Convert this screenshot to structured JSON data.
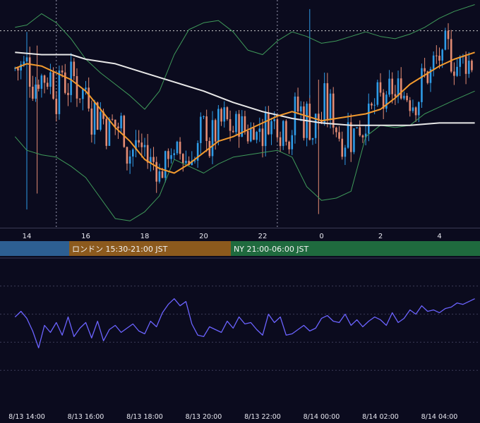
{
  "chart_data": [
    {
      "type": "candlestick",
      "title": "",
      "x_hours": [
        14,
        16,
        18,
        20,
        22,
        0,
        2,
        4
      ],
      "x_tick_labels": [
        "14",
        "16",
        "18",
        "20",
        "22",
        "0",
        "2",
        "4"
      ],
      "ylim": [
        0,
        100
      ],
      "y_unit": "relative (no price axis shown)",
      "colors": {
        "up": "#2e9be6",
        "down": "#e38b73",
        "ma_short": "#f29a2e",
        "ma_long": "#e8e8e8",
        "bollinger": "#3f9a5a",
        "hline": "#d0d0d0"
      },
      "ma_long": {
        "x": [
          13.6,
          14.5,
          15.5,
          16,
          17,
          18,
          19,
          20,
          21,
          22,
          23,
          0,
          1,
          2,
          3,
          4,
          5.2
        ],
        "y": [
          77,
          76,
          76,
          74,
          72,
          68,
          64,
          60,
          55,
          51,
          48,
          46,
          45,
          45,
          45,
          46,
          46
        ]
      },
      "ma_short": {
        "x": [
          13.6,
          14,
          14.5,
          15,
          15.5,
          16,
          16.5,
          17,
          17.5,
          18,
          18.5,
          19,
          19.5,
          20,
          20.5,
          21,
          21.5,
          22,
          22.5,
          23,
          23.5,
          0,
          0.5,
          1,
          1.5,
          2,
          2.5,
          3,
          3.5,
          4,
          4.5,
          5.2
        ],
        "y": [
          70,
          72,
          71,
          68,
          65,
          60,
          52,
          44,
          38,
          30,
          26,
          24,
          28,
          33,
          38,
          40,
          43,
          46,
          49,
          51,
          49,
          47,
          48,
          49,
          50,
          52,
          57,
          63,
          67,
          71,
          74,
          77
        ]
      },
      "bollinger_upper": {
        "x": [
          13.6,
          14,
          14.5,
          15,
          15.5,
          16,
          16.5,
          17,
          17.5,
          18,
          18.5,
          19,
          19.5,
          20,
          20.5,
          21,
          21.5,
          22,
          22.5,
          23,
          23.5,
          0,
          0.5,
          1,
          1.5,
          2,
          2.5,
          3,
          3.5,
          4,
          4.5,
          5.2
        ],
        "y": [
          88,
          89,
          94,
          90,
          83,
          74,
          68,
          63,
          58,
          52,
          60,
          76,
          87,
          90,
          91,
          86,
          78,
          76,
          82,
          86,
          84,
          81,
          82,
          84,
          86,
          84,
          83,
          85,
          88,
          92,
          95,
          98
        ]
      },
      "bollinger_lower": {
        "x": [
          13.6,
          14,
          14.5,
          15,
          15.5,
          16,
          16.5,
          17,
          17.5,
          18,
          18.5,
          19,
          19.5,
          20,
          20.5,
          21,
          21.5,
          22,
          22.5,
          23,
          23.5,
          0,
          0.5,
          1,
          1.5,
          2,
          2.5,
          3,
          3.5,
          4,
          4.5,
          5.2
        ],
        "y": [
          40,
          34,
          32,
          31,
          27,
          22,
          13,
          4,
          3,
          7,
          14,
          30,
          27,
          24,
          28,
          31,
          32,
          33,
          34,
          31,
          18,
          12,
          13,
          16,
          40,
          45,
          44,
          45,
          50,
          53,
          56,
          60
        ]
      },
      "resistance_level": 86.5,
      "crosshair_x_hours": [
        15.0,
        22.5
      ]
    },
    {
      "type": "line",
      "title": "",
      "x_tick_labels": [
        "8/13 14:00",
        "8/13 16:00",
        "8/13 18:00",
        "8/13 20:00",
        "8/13 22:00",
        "8/14 00:00",
        "8/14 02:00",
        "8/14 04:00"
      ],
      "ylim": [
        0,
        100
      ],
      "color": "#6b63ff",
      "x_hours": [
        13.6,
        13.8,
        14.0,
        14.2,
        14.4,
        14.6,
        14.8,
        15.0,
        15.2,
        15.4,
        15.6,
        15.8,
        16.0,
        16.2,
        16.4,
        16.6,
        16.8,
        17.0,
        17.2,
        17.4,
        17.6,
        17.8,
        18.0,
        18.2,
        18.4,
        18.6,
        18.8,
        19.0,
        19.2,
        19.4,
        19.6,
        19.8,
        20.0,
        20.2,
        20.4,
        20.6,
        20.8,
        21.0,
        21.2,
        21.4,
        21.6,
        21.8,
        22.0,
        22.2,
        22.4,
        22.6,
        22.8,
        23.0,
        23.2,
        23.4,
        23.6,
        23.8,
        0.0,
        0.2,
        0.4,
        0.6,
        0.8,
        1.0,
        1.2,
        1.4,
        1.6,
        1.8,
        2.0,
        2.2,
        2.4,
        2.6,
        2.8,
        3.0,
        3.2,
        3.4,
        3.6,
        3.8,
        4.0,
        4.2,
        4.4,
        4.6,
        4.8,
        5.0,
        5.2
      ],
      "values": [
        58,
        62,
        57,
        48,
        36,
        52,
        47,
        54,
        45,
        58,
        44,
        50,
        54,
        43,
        55,
        41,
        49,
        52,
        47,
        50,
        53,
        48,
        46,
        55,
        51,
        61,
        67,
        71,
        66,
        69,
        53,
        45,
        44,
        51,
        49,
        47,
        55,
        50,
        58,
        53,
        54,
        49,
        45,
        60,
        54,
        58,
        45,
        46,
        49,
        52,
        48,
        50,
        57,
        59,
        55,
        54,
        60,
        52,
        56,
        51,
        55,
        58,
        56,
        52,
        61,
        54,
        57,
        63,
        60,
        66,
        62,
        63,
        61,
        64,
        65,
        68,
        67,
        69,
        71
      ]
    }
  ],
  "sessions": [
    {
      "label": "",
      "color": "#2d5f92"
    },
    {
      "label": "ロンドン 15:30-21:00 JST",
      "color": "#8c5a1d"
    },
    {
      "label": "NY 21:00-06:00 JST",
      "color": "#1f6a3e"
    }
  ]
}
